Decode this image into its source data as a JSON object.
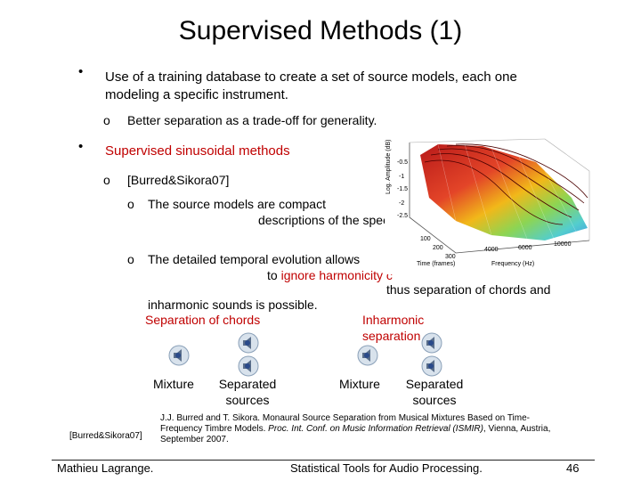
{
  "slide": {
    "title": "Supervised Methods (1)",
    "bullets": [
      {
        "text_line1": "Use of a training database to create a set of source models, each one",
        "text_line2": "modeling a specific instrument.",
        "sub": "Better separation as a trade-off for generality."
      },
      {
        "text": "Supervised sinusoidal methods",
        "sub": "[Burred&Sikora07]",
        "subsub": [
          {
            "line1": "The source models are compact",
            "line2": "descriptions of the spec"
          },
          {
            "line1": "The detailed temporal evolution allows",
            "line2_pre": "to ",
            "line2_red": "ignore harmonicity c",
            "line3": "thus separation of chords and",
            "line4": "inharmonic sounds is possible."
          }
        ]
      }
    ],
    "bullet_symbol": "•",
    "sub_symbol": "o"
  },
  "figure": {
    "ylabel": "Log. Amplitude (dB)",
    "yticks": [
      "-0.5",
      "-1",
      "-1.5",
      "-2",
      "-2.5"
    ],
    "xticks_time": [
      "100",
      "200",
      "300"
    ],
    "xlabel_time": "Time (frames)",
    "xticks_freq": [
      "4000",
      "6000",
      "10000"
    ],
    "xlabel_freq": "Frequency (Hz)"
  },
  "audio": {
    "group1_label": "Separation of chords",
    "group2_label_line1": "Inharmonic",
    "group2_label_line2": "separation",
    "mixture": "Mixture",
    "separated_line1": "Separated",
    "separated_line2": "sources"
  },
  "reference": {
    "tag": "[Burred&Sikora07]",
    "line1": "J.J. Burred and T. Sikora. Monaural Source Separation from Musical Mixtures Based on Time-",
    "line2_pre": "Frequency Timbre Models. ",
    "line2_italic": "Proc. Int. Conf. on Music Information Retrieval (ISMIR)",
    "line2_post": ", Vienna, Austria,",
    "line3": "September 2007."
  },
  "footer": {
    "author": "Mathieu Lagrange.",
    "course": "Statistical Tools for Audio Processing.",
    "page": "46"
  }
}
